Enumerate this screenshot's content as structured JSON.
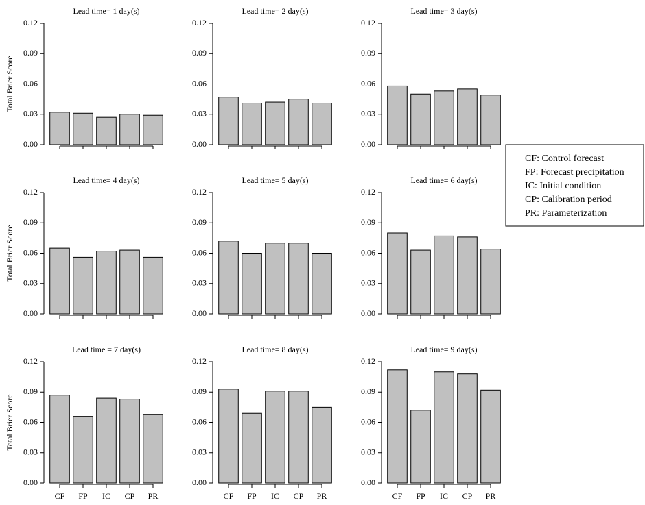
{
  "chart_data": [
    {
      "type": "bar",
      "title": "Lead time= 1 day(s)",
      "ylabel": "Total Brier Score",
      "categories": [
        null,
        null,
        null,
        null,
        null
      ],
      "values": [
        0.032,
        0.031,
        0.027,
        0.03,
        0.029
      ],
      "color": "#c0c0c0",
      "ylim": [
        0,
        0.12
      ],
      "yticks": [
        {
          "value": 0,
          "label": "0.00"
        },
        {
          "value": 0.03,
          "label": "0.03"
        },
        {
          "value": 0.06,
          "label": "0.06"
        },
        {
          "value": 0.09,
          "label": "0.09"
        },
        {
          "value": 0.12,
          "label": "0.12"
        }
      ]
    },
    {
      "type": "bar",
      "title": "Lead time= 2 day(s)",
      "categories": [
        null,
        null,
        null,
        null,
        null
      ],
      "values": [
        0.047,
        0.041,
        0.042,
        0.045,
        0.041
      ],
      "color": "#c0c0c0",
      "ylim": [
        0,
        0.12
      ],
      "yticks": [
        {
          "value": 0,
          "label": "0.00"
        },
        {
          "value": 0.03,
          "label": "0.03"
        },
        {
          "value": 0.06,
          "label": "0.06"
        },
        {
          "value": 0.09,
          "label": "0.09"
        },
        {
          "value": 0.12,
          "label": "0.12"
        }
      ]
    },
    {
      "type": "bar",
      "title": "Lead time= 3 day(s)",
      "categories": [
        null,
        null,
        null,
        null,
        null
      ],
      "values": [
        0.058,
        0.05,
        0.053,
        0.055,
        0.049
      ],
      "color": "#c0c0c0",
      "ylim": [
        0,
        0.12
      ],
      "yticks": [
        {
          "value": 0,
          "label": "0.00"
        },
        {
          "value": 0.03,
          "label": "0.03"
        },
        {
          "value": 0.06,
          "label": "0.06"
        },
        {
          "value": 0.09,
          "label": "0.09"
        },
        {
          "value": 0.12,
          "label": "0.12"
        }
      ]
    },
    {
      "type": "bar",
      "title": "Lead time= 4 day(s)",
      "ylabel": "Total Brier Score",
      "categories": [
        null,
        null,
        null,
        null,
        null
      ],
      "values": [
        0.065,
        0.056,
        0.062,
        0.063,
        0.056
      ],
      "color": "#c0c0c0",
      "ylim": [
        0,
        0.12
      ],
      "yticks": [
        {
          "value": 0,
          "label": "0.00"
        },
        {
          "value": 0.03,
          "label": "0.03"
        },
        {
          "value": 0.06,
          "label": "0.06"
        },
        {
          "value": 0.09,
          "label": "0.09"
        },
        {
          "value": 0.12,
          "label": "0.12"
        }
      ]
    },
    {
      "type": "bar",
      "title": "Lead time= 5 day(s)",
      "categories": [
        null,
        null,
        null,
        null,
        null
      ],
      "values": [
        0.072,
        0.06,
        0.07,
        0.07,
        0.06
      ],
      "color": "#c0c0c0",
      "ylim": [
        0,
        0.12
      ],
      "yticks": [
        {
          "value": 0,
          "label": "0.00"
        },
        {
          "value": 0.03,
          "label": "0.03"
        },
        {
          "value": 0.06,
          "label": "0.06"
        },
        {
          "value": 0.09,
          "label": "0.09"
        },
        {
          "value": 0.12,
          "label": "0.12"
        }
      ]
    },
    {
      "type": "bar",
      "title": "Lead time= 6 day(s)",
      "categories": [
        null,
        null,
        null,
        null,
        null
      ],
      "values": [
        0.08,
        0.063,
        0.077,
        0.076,
        0.064
      ],
      "color": "#c0c0c0",
      "ylim": [
        0,
        0.12
      ],
      "yticks": [
        {
          "value": 0,
          "label": "0.00"
        },
        {
          "value": 0.03,
          "label": "0.03"
        },
        {
          "value": 0.06,
          "label": "0.06"
        },
        {
          "value": 0.09,
          "label": "0.09"
        },
        {
          "value": 0.12,
          "label": "0.12"
        }
      ]
    },
    {
      "type": "bar",
      "title": "Lead time = 7 day(s)",
      "ylabel": "Total Brier Score",
      "categories": [
        "CF",
        "FP",
        "IC",
        "CP",
        "PR"
      ],
      "values": [
        0.087,
        0.066,
        0.084,
        0.083,
        0.068
      ],
      "color": "#c0c0c0",
      "ylim": [
        0,
        0.12
      ],
      "yticks": [
        {
          "value": 0,
          "label": "0.00"
        },
        {
          "value": 0.03,
          "label": "0.03"
        },
        {
          "value": 0.06,
          "label": "0.06"
        },
        {
          "value": 0.09,
          "label": "0.09"
        },
        {
          "value": 0.12,
          "label": "0.12"
        }
      ]
    },
    {
      "type": "bar",
      "title": "Lead time= 8 day(s)",
      "categories": [
        "CF",
        "FP",
        "IC",
        "CP",
        "PR"
      ],
      "values": [
        0.093,
        0.069,
        0.091,
        0.091,
        0.075
      ],
      "color": "#c0c0c0",
      "ylim": [
        0,
        0.12
      ],
      "yticks": [
        {
          "value": 0,
          "label": "0.00"
        },
        {
          "value": 0.03,
          "label": "0.03"
        },
        {
          "value": 0.06,
          "label": "0.06"
        },
        {
          "value": 0.09,
          "label": "0.09"
        },
        {
          "value": 0.12,
          "label": "0.12"
        }
      ]
    },
    {
      "type": "bar",
      "title": "Lead time= 9 day(s)",
      "categories": [
        "CF",
        "FP",
        "IC",
        "CP",
        "PR"
      ],
      "values": [
        0.112,
        0.072,
        0.11,
        0.108,
        0.092
      ],
      "color": "#c0c0c0",
      "ylim": [
        0,
        0.12
      ],
      "yticks": [
        {
          "value": 0,
          "label": "0.00"
        },
        {
          "value": 0.03,
          "label": "0.03"
        },
        {
          "value": 0.06,
          "label": "0.06"
        },
        {
          "value": 0.09,
          "label": "0.09"
        },
        {
          "value": 0.12,
          "label": "0.12"
        }
      ]
    }
  ],
  "key": {
    "lines": [
      "CF: Control forecast",
      "FP: Forecast precipitation",
      "IC: Initial condition",
      "CP: Calibration period",
      "PR: Parameterization"
    ]
  }
}
